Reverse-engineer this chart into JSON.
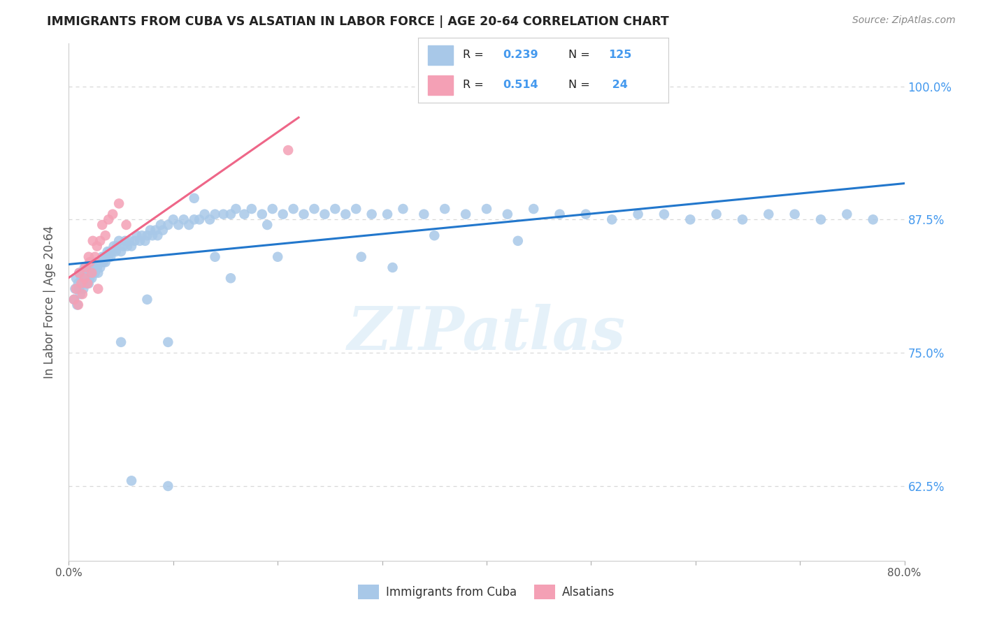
{
  "title": "IMMIGRANTS FROM CUBA VS ALSATIAN IN LABOR FORCE | AGE 20-64 CORRELATION CHART",
  "source": "Source: ZipAtlas.com",
  "ylabel": "In Labor Force | Age 20-64",
  "ytick_vals": [
    0.625,
    0.75,
    0.875,
    1.0
  ],
  "xlim": [
    0.0,
    0.8
  ],
  "ylim": [
    0.555,
    1.04
  ],
  "legend_label1": "Immigrants from Cuba",
  "legend_label2": "Alsatians",
  "cuba_color": "#a8c8e8",
  "alsatian_color": "#f4a0b5",
  "trendline_cuba_color": "#2277cc",
  "trendline_alsatian_color": "#ee6688",
  "background_color": "#ffffff",
  "watermark": "ZIPatlas",
  "grid_color": "#d8d8d8",
  "cuba_x": [
    0.005,
    0.006,
    0.007,
    0.008,
    0.009,
    0.01,
    0.01,
    0.011,
    0.012,
    0.013,
    0.013,
    0.014,
    0.015,
    0.015,
    0.016,
    0.017,
    0.018,
    0.018,
    0.019,
    0.02,
    0.02,
    0.021,
    0.022,
    0.023,
    0.024,
    0.025,
    0.026,
    0.027,
    0.028,
    0.029,
    0.03,
    0.031,
    0.032,
    0.033,
    0.034,
    0.035,
    0.036,
    0.037,
    0.038,
    0.039,
    0.04,
    0.042,
    0.043,
    0.045,
    0.046,
    0.048,
    0.05,
    0.052,
    0.054,
    0.056,
    0.058,
    0.06,
    0.063,
    0.065,
    0.068,
    0.07,
    0.073,
    0.075,
    0.078,
    0.08,
    0.083,
    0.085,
    0.088,
    0.09,
    0.095,
    0.1,
    0.105,
    0.11,
    0.115,
    0.12,
    0.125,
    0.13,
    0.135,
    0.14,
    0.148,
    0.155,
    0.16,
    0.168,
    0.175,
    0.185,
    0.195,
    0.205,
    0.215,
    0.225,
    0.235,
    0.245,
    0.255,
    0.265,
    0.275,
    0.29,
    0.305,
    0.32,
    0.34,
    0.36,
    0.38,
    0.4,
    0.42,
    0.445,
    0.47,
    0.495,
    0.52,
    0.545,
    0.57,
    0.595,
    0.62,
    0.645,
    0.67,
    0.695,
    0.72,
    0.745,
    0.77,
    0.05,
    0.095,
    0.14,
    0.19,
    0.12,
    0.075,
    0.2,
    0.155,
    0.28,
    0.35,
    0.43,
    0.31,
    0.06,
    0.095
  ],
  "cuba_y": [
    0.8,
    0.81,
    0.82,
    0.795,
    0.815,
    0.81,
    0.825,
    0.805,
    0.82,
    0.815,
    0.825,
    0.81,
    0.82,
    0.83,
    0.815,
    0.825,
    0.82,
    0.83,
    0.815,
    0.82,
    0.83,
    0.825,
    0.82,
    0.825,
    0.83,
    0.825,
    0.835,
    0.83,
    0.825,
    0.835,
    0.83,
    0.835,
    0.84,
    0.835,
    0.84,
    0.835,
    0.84,
    0.845,
    0.84,
    0.845,
    0.84,
    0.845,
    0.85,
    0.845,
    0.85,
    0.855,
    0.845,
    0.85,
    0.855,
    0.85,
    0.855,
    0.85,
    0.855,
    0.86,
    0.855,
    0.86,
    0.855,
    0.86,
    0.865,
    0.86,
    0.865,
    0.86,
    0.87,
    0.865,
    0.87,
    0.875,
    0.87,
    0.875,
    0.87,
    0.875,
    0.875,
    0.88,
    0.875,
    0.88,
    0.88,
    0.88,
    0.885,
    0.88,
    0.885,
    0.88,
    0.885,
    0.88,
    0.885,
    0.88,
    0.885,
    0.88,
    0.885,
    0.88,
    0.885,
    0.88,
    0.88,
    0.885,
    0.88,
    0.885,
    0.88,
    0.885,
    0.88,
    0.885,
    0.88,
    0.88,
    0.875,
    0.88,
    0.88,
    0.875,
    0.88,
    0.875,
    0.88,
    0.88,
    0.875,
    0.88,
    0.875,
    0.76,
    0.76,
    0.84,
    0.87,
    0.895,
    0.8,
    0.84,
    0.82,
    0.84,
    0.86,
    0.855,
    0.83,
    0.63,
    0.625
  ],
  "als_x": [
    0.005,
    0.007,
    0.009,
    0.01,
    0.012,
    0.013,
    0.015,
    0.016,
    0.018,
    0.019,
    0.02,
    0.022,
    0.023,
    0.025,
    0.027,
    0.028,
    0.03,
    0.032,
    0.035,
    0.038,
    0.042,
    0.048,
    0.055,
    0.21
  ],
  "als_y": [
    0.8,
    0.81,
    0.795,
    0.825,
    0.815,
    0.805,
    0.82,
    0.83,
    0.815,
    0.84,
    0.835,
    0.825,
    0.855,
    0.84,
    0.85,
    0.81,
    0.855,
    0.87,
    0.86,
    0.875,
    0.88,
    0.89,
    0.87,
    0.94
  ]
}
